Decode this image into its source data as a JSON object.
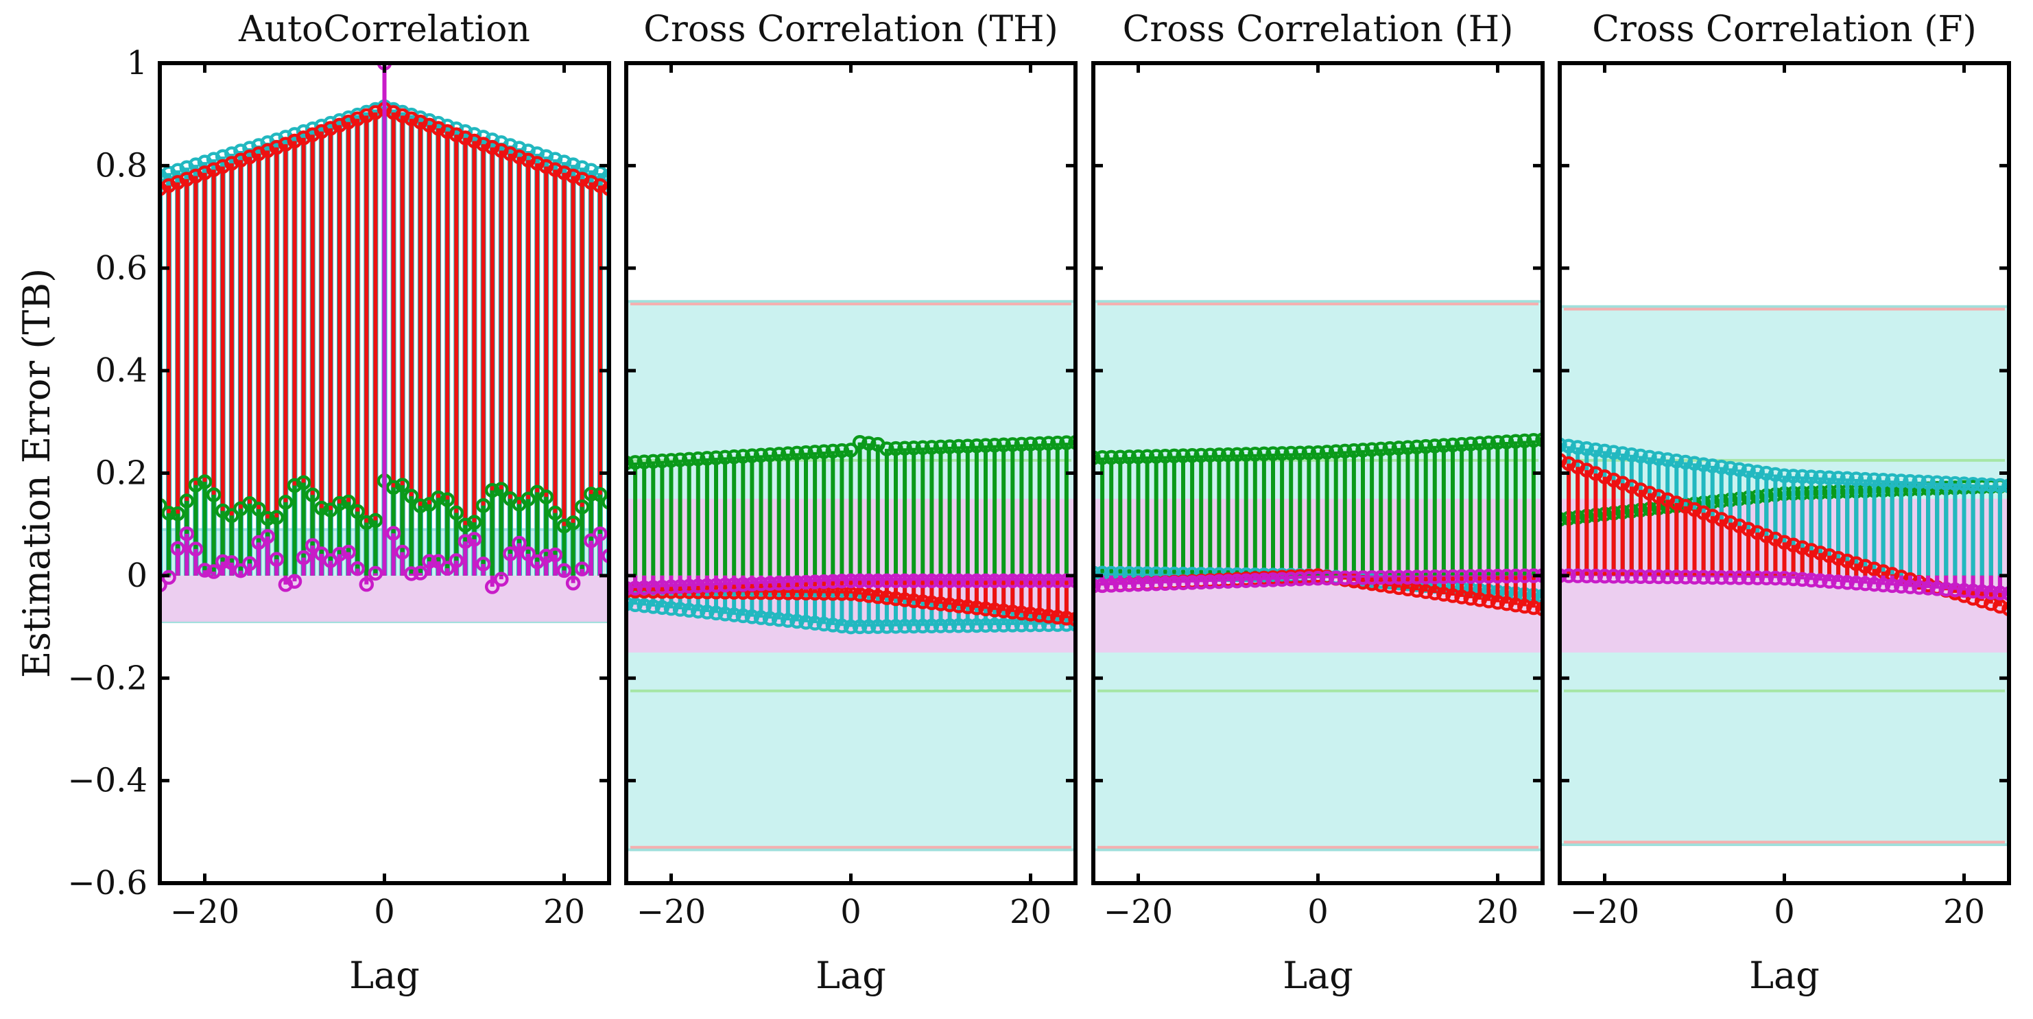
{
  "chart_data": {
    "type": "stem",
    "ylabel": "Estimation Error (TB)",
    "xlabel": "Lag",
    "ylim": [
      -0.6,
      1.0
    ],
    "xlim": [
      -25,
      25
    ],
    "yticks": [
      "1",
      "0.8",
      "0.6",
      "0.4",
      "0.2",
      "0",
      "−0.2",
      "−0.4",
      "−0.6"
    ],
    "ytick_values": [
      1,
      0.8,
      0.6,
      0.4,
      0.2,
      0,
      -0.2,
      -0.4,
      -0.6
    ],
    "xticks": [
      "−20",
      "0",
      "20"
    ],
    "xtick_values": [
      -20,
      0,
      20
    ],
    "colors": {
      "red": "#ee1111",
      "cyan": "#22b8c0",
      "green": "#0a9a1a",
      "magenta": "#c81cc8",
      "cyan_band": "#cbf2f0",
      "magenta_band": "#f2c8f0",
      "red_line": "#f4b0b0",
      "green_line": "#a6e6a6"
    },
    "panels": [
      {
        "title": "AutoCorrelation",
        "bands": {
          "cyan": [
            -0.09,
            0.09
          ],
          "magenta": [
            -0.09,
            0.0
          ]
        },
        "bound_lines": {
          "red": null,
          "green": null
        },
        "series": [
          {
            "name": "cyan",
            "type": "auto_peak",
            "edge": 0.78,
            "peak": 0.915
          },
          {
            "name": "red",
            "type": "auto_peak",
            "edge": 0.755,
            "peak": 0.91
          },
          {
            "name": "green",
            "type": "auto_osc",
            "base": 0.14,
            "amp": 0.045
          },
          {
            "name": "magenta",
            "type": "auto_osc_spike",
            "base": 0.03,
            "amp": 0.055,
            "peak": 1.0
          }
        ]
      },
      {
        "title": "Cross Correlation (TH)",
        "bands": {
          "cyan": [
            -0.535,
            0.535
          ],
          "magenta": [
            -0.15,
            0.15
          ]
        },
        "bound_lines": {
          "red": 0.53,
          "green": 0.225
        },
        "series": [
          {
            "name": "cyan",
            "type": "line3",
            "a": -0.055,
            "b": -0.1,
            "c": -0.095
          },
          {
            "name": "red",
            "type": "line3",
            "a": -0.03,
            "b": -0.035,
            "c": -0.085
          },
          {
            "name": "green",
            "type": "line3",
            "a": 0.22,
            "b": 0.245,
            "c": 0.26,
            "jump": 0.262
          },
          {
            "name": "magenta",
            "type": "line3",
            "a": -0.025,
            "b": -0.01,
            "c": -0.01
          }
        ]
      },
      {
        "title": "Cross Correlation (H)",
        "bands": {
          "cyan": [
            -0.535,
            0.535
          ],
          "magenta": [
            -0.15,
            0.15
          ]
        },
        "bound_lines": {
          "red": 0.53,
          "green": 0.225
        },
        "series": [
          {
            "name": "cyan",
            "type": "line3",
            "a": 0.005,
            "b": 0.0,
            "c": -0.04
          },
          {
            "name": "red",
            "type": "line3",
            "a": -0.02,
            "b": 0.0,
            "c": -0.065
          },
          {
            "name": "green",
            "type": "line3",
            "a": 0.23,
            "b": 0.24,
            "c": 0.265
          },
          {
            "name": "magenta",
            "type": "line3",
            "a": -0.02,
            "b": -0.005,
            "c": 0.0
          }
        ]
      },
      {
        "title": "Cross Correlation (F)",
        "bands": {
          "cyan": [
            -0.525,
            0.525
          ],
          "magenta": [
            -0.15,
            0.15
          ]
        },
        "bound_lines": {
          "red": 0.52,
          "green": 0.225
        },
        "series": [
          {
            "name": "cyan",
            "type": "line3",
            "a": 0.255,
            "b": 0.195,
            "c": 0.175
          },
          {
            "name": "red",
            "type": "line3",
            "a": 0.225,
            "b": 0.065,
            "c": -0.065
          },
          {
            "name": "green",
            "type": "line3",
            "a": 0.11,
            "b": 0.16,
            "c": 0.175
          },
          {
            "name": "magenta",
            "type": "line3",
            "a": 0.0,
            "b": -0.005,
            "c": -0.035
          }
        ]
      }
    ]
  }
}
